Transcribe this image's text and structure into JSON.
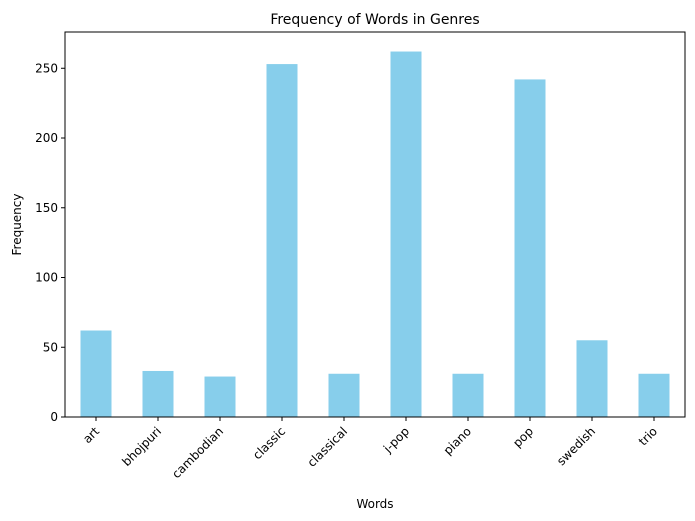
{
  "chart_data": {
    "type": "bar",
    "title": "Frequency of Words in Genres",
    "xlabel": "Words",
    "ylabel": "Frequency",
    "categories": [
      "art",
      "bhojpuri",
      "cambodian",
      "classic",
      "classical",
      "j-pop",
      "piano",
      "pop",
      "swedish",
      "trio"
    ],
    "values": [
      62,
      33,
      29,
      253,
      31,
      262,
      31,
      242,
      55,
      31
    ],
    "ylim": [
      0,
      276
    ],
    "yticks": [
      0,
      50,
      100,
      150,
      200,
      250
    ],
    "bar_color": "#87ceeb",
    "grid": false,
    "legend": false
  }
}
